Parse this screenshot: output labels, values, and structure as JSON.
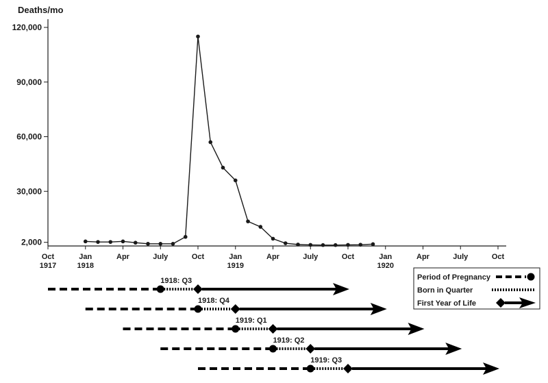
{
  "chart_data": {
    "type": "line",
    "ylabel": "Deaths/mo",
    "y_ticks": [
      2000,
      30000,
      60000,
      90000,
      120000
    ],
    "y_tick_labels": [
      "2,000",
      "30,000",
      "60,000",
      "90,000",
      "120,000"
    ],
    "ylim": [
      0,
      125000
    ],
    "x_ticks": [
      {
        "month": "Oct",
        "year": "1917"
      },
      {
        "month": "Jan",
        "year": "1918"
      },
      {
        "month": "Apr",
        "year": ""
      },
      {
        "month": "July",
        "year": ""
      },
      {
        "month": "Oct",
        "year": ""
      },
      {
        "month": "Jan",
        "year": "1919"
      },
      {
        "month": "Apr",
        "year": ""
      },
      {
        "month": "July",
        "year": ""
      },
      {
        "month": "Oct",
        "year": ""
      },
      {
        "month": "Jan",
        "year": "1920"
      },
      {
        "month": "Apr",
        "year": ""
      },
      {
        "month": "July",
        "year": ""
      },
      {
        "month": "Oct",
        "year": ""
      }
    ],
    "series": [
      {
        "x": [
          "1918-01",
          "1918-02",
          "1918-03",
          "1918-04",
          "1918-05",
          "1918-06",
          "1918-07",
          "1918-08",
          "1918-09",
          "1918-10",
          "1918-11",
          "1918-12",
          "1919-01",
          "1919-02",
          "1919-03",
          "1919-04",
          "1919-05",
          "1919-06",
          "1919-07",
          "1919-08",
          "1919-09",
          "1919-10",
          "1919-11",
          "1919-12"
        ],
        "values": [
          2500,
          2200,
          2200,
          2500,
          1800,
          1200,
          1200,
          1200,
          5000,
          115000,
          57000,
          43000,
          36000,
          13500,
          10500,
          4000,
          1500,
          800,
          600,
          500,
          500,
          600,
          700,
          1000
        ]
      }
    ]
  },
  "timeline": {
    "cohorts": [
      {
        "label": "1918: Q3",
        "preg_start": "1917-10",
        "birth_start": "1918-07",
        "birth_end": "1918-10",
        "life_end": "1919-10"
      },
      {
        "label": "1918: Q4",
        "preg_start": "1918-01",
        "birth_start": "1918-10",
        "birth_end": "1919-01",
        "life_end": "1920-01"
      },
      {
        "label": "1919: Q1",
        "preg_start": "1918-04",
        "birth_start": "1919-01",
        "birth_end": "1919-04",
        "life_end": "1920-04"
      },
      {
        "label": "1919: Q2",
        "preg_start": "1918-07",
        "birth_start": "1919-04",
        "birth_end": "1919-07",
        "life_end": "1920-07"
      },
      {
        "label": "1919: Q3",
        "preg_start": "1918-10",
        "birth_start": "1919-07",
        "birth_end": "1919-10",
        "life_end": "1920-10"
      }
    ],
    "legend": [
      {
        "label": "Period of Pregnancy",
        "style": "dashed",
        "marker": "circle"
      },
      {
        "label": "Born in Quarter",
        "style": "dotted",
        "marker": "none"
      },
      {
        "label": "First Year of Life",
        "style": "solid",
        "marker": "diamond-arrow"
      }
    ]
  }
}
